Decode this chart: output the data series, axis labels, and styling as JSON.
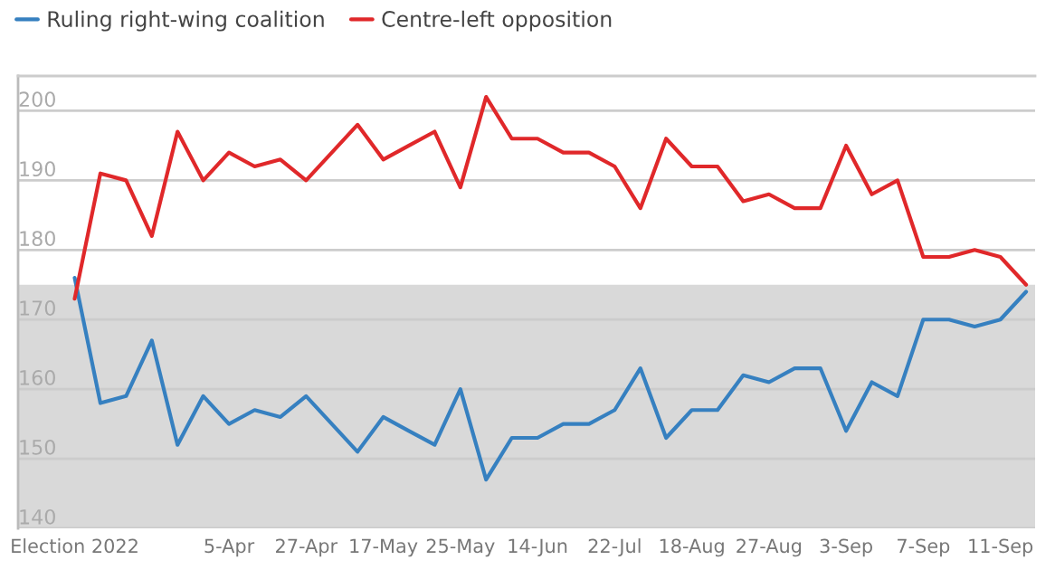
{
  "chart_data": {
    "type": "line",
    "categories": [
      "Election 2022",
      null,
      null,
      null,
      null,
      null,
      "5-Apr",
      null,
      null,
      "27-Apr",
      null,
      null,
      "17-May",
      null,
      null,
      "25-May",
      null,
      null,
      "14-Jun",
      null,
      null,
      "22-Jul",
      null,
      null,
      "18-Aug",
      null,
      null,
      "27-Aug",
      null,
      null,
      "3-Sep",
      null,
      null,
      "7-Sep",
      null,
      null,
      "11-Sep",
      null
    ],
    "series": [
      {
        "name": "Ruling right-wing coalition",
        "color": "#3680c0",
        "values": [
          176,
          158,
          159,
          167,
          152,
          159,
          155,
          157,
          156,
          159,
          155,
          151,
          156,
          154,
          152,
          160,
          147,
          153,
          153,
          155,
          155,
          157,
          163,
          153,
          157,
          157,
          162,
          161,
          163,
          163,
          154,
          161,
          159,
          170,
          170,
          169,
          170,
          174
        ]
      },
      {
        "name": "Centre-left opposition",
        "color": "#e0282a",
        "values": [
          173,
          191,
          190,
          182,
          197,
          190,
          194,
          192,
          193,
          190,
          194,
          198,
          193,
          195,
          197,
          189,
          202,
          196,
          196,
          194,
          194,
          192,
          186,
          196,
          192,
          192,
          187,
          188,
          186,
          186,
          195,
          188,
          190,
          179,
          179,
          180,
          179,
          175
        ]
      }
    ],
    "ylim": [
      140,
      205
    ],
    "yticks": [
      140,
      150,
      160,
      170,
      180,
      190,
      200
    ],
    "bands": [
      {
        "axis": "y",
        "from": 140,
        "to": 175,
        "color": "#d9d9d9"
      }
    ],
    "grid": "y",
    "legend": "top left"
  }
}
